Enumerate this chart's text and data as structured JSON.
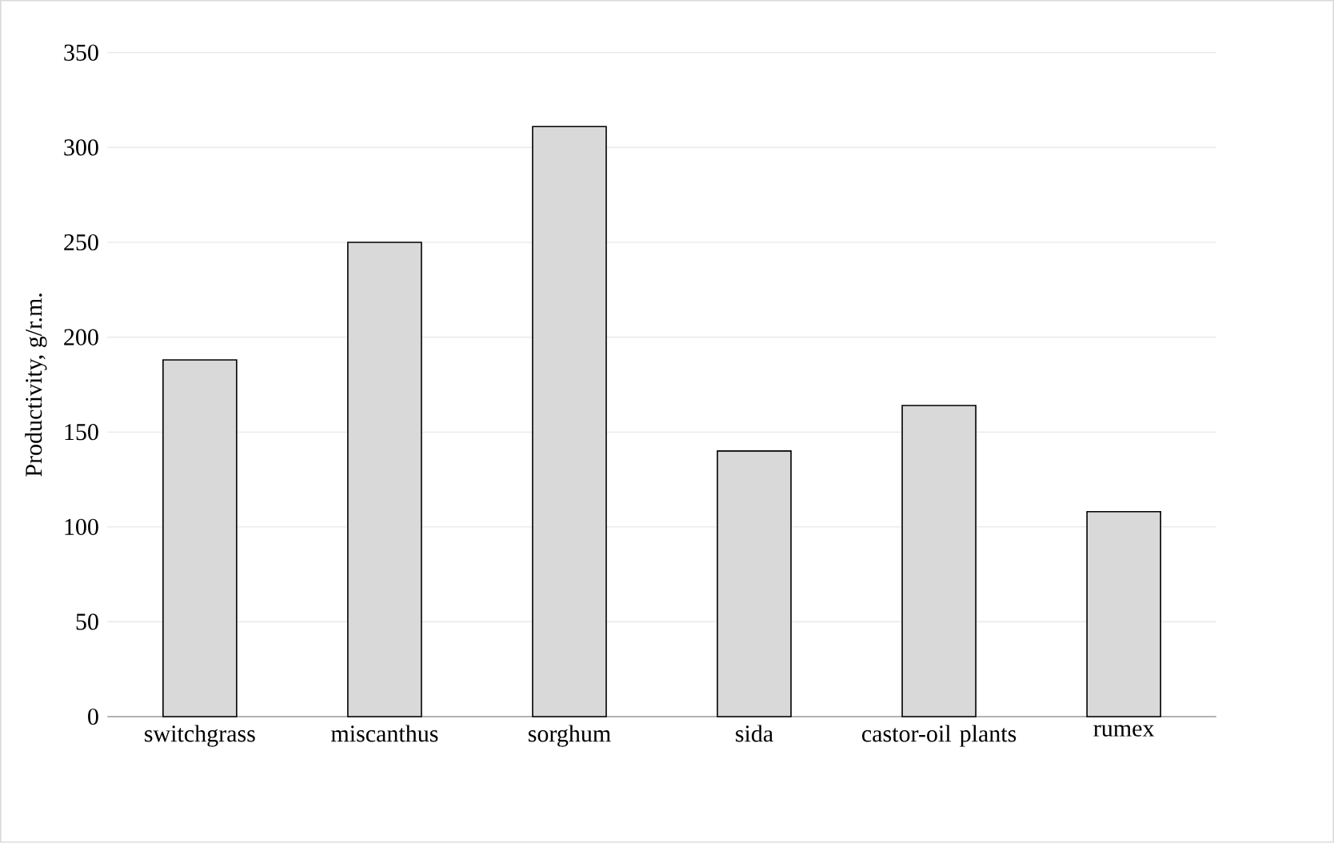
{
  "chart_data": {
    "type": "bar",
    "ylabel": "Productivity, g/r.m.",
    "categories": [
      "switchgrass",
      "miscanthus",
      "sorghum",
      "sida",
      "castor-oil plants",
      "rumex"
    ],
    "values": [
      188,
      250,
      311,
      140,
      164,
      108
    ],
    "color": "#d9d9d9",
    "ylim": [
      0,
      350
    ],
    "yticks": [
      0,
      50,
      100,
      150,
      200,
      250,
      300,
      350
    ],
    "grid": "y"
  }
}
